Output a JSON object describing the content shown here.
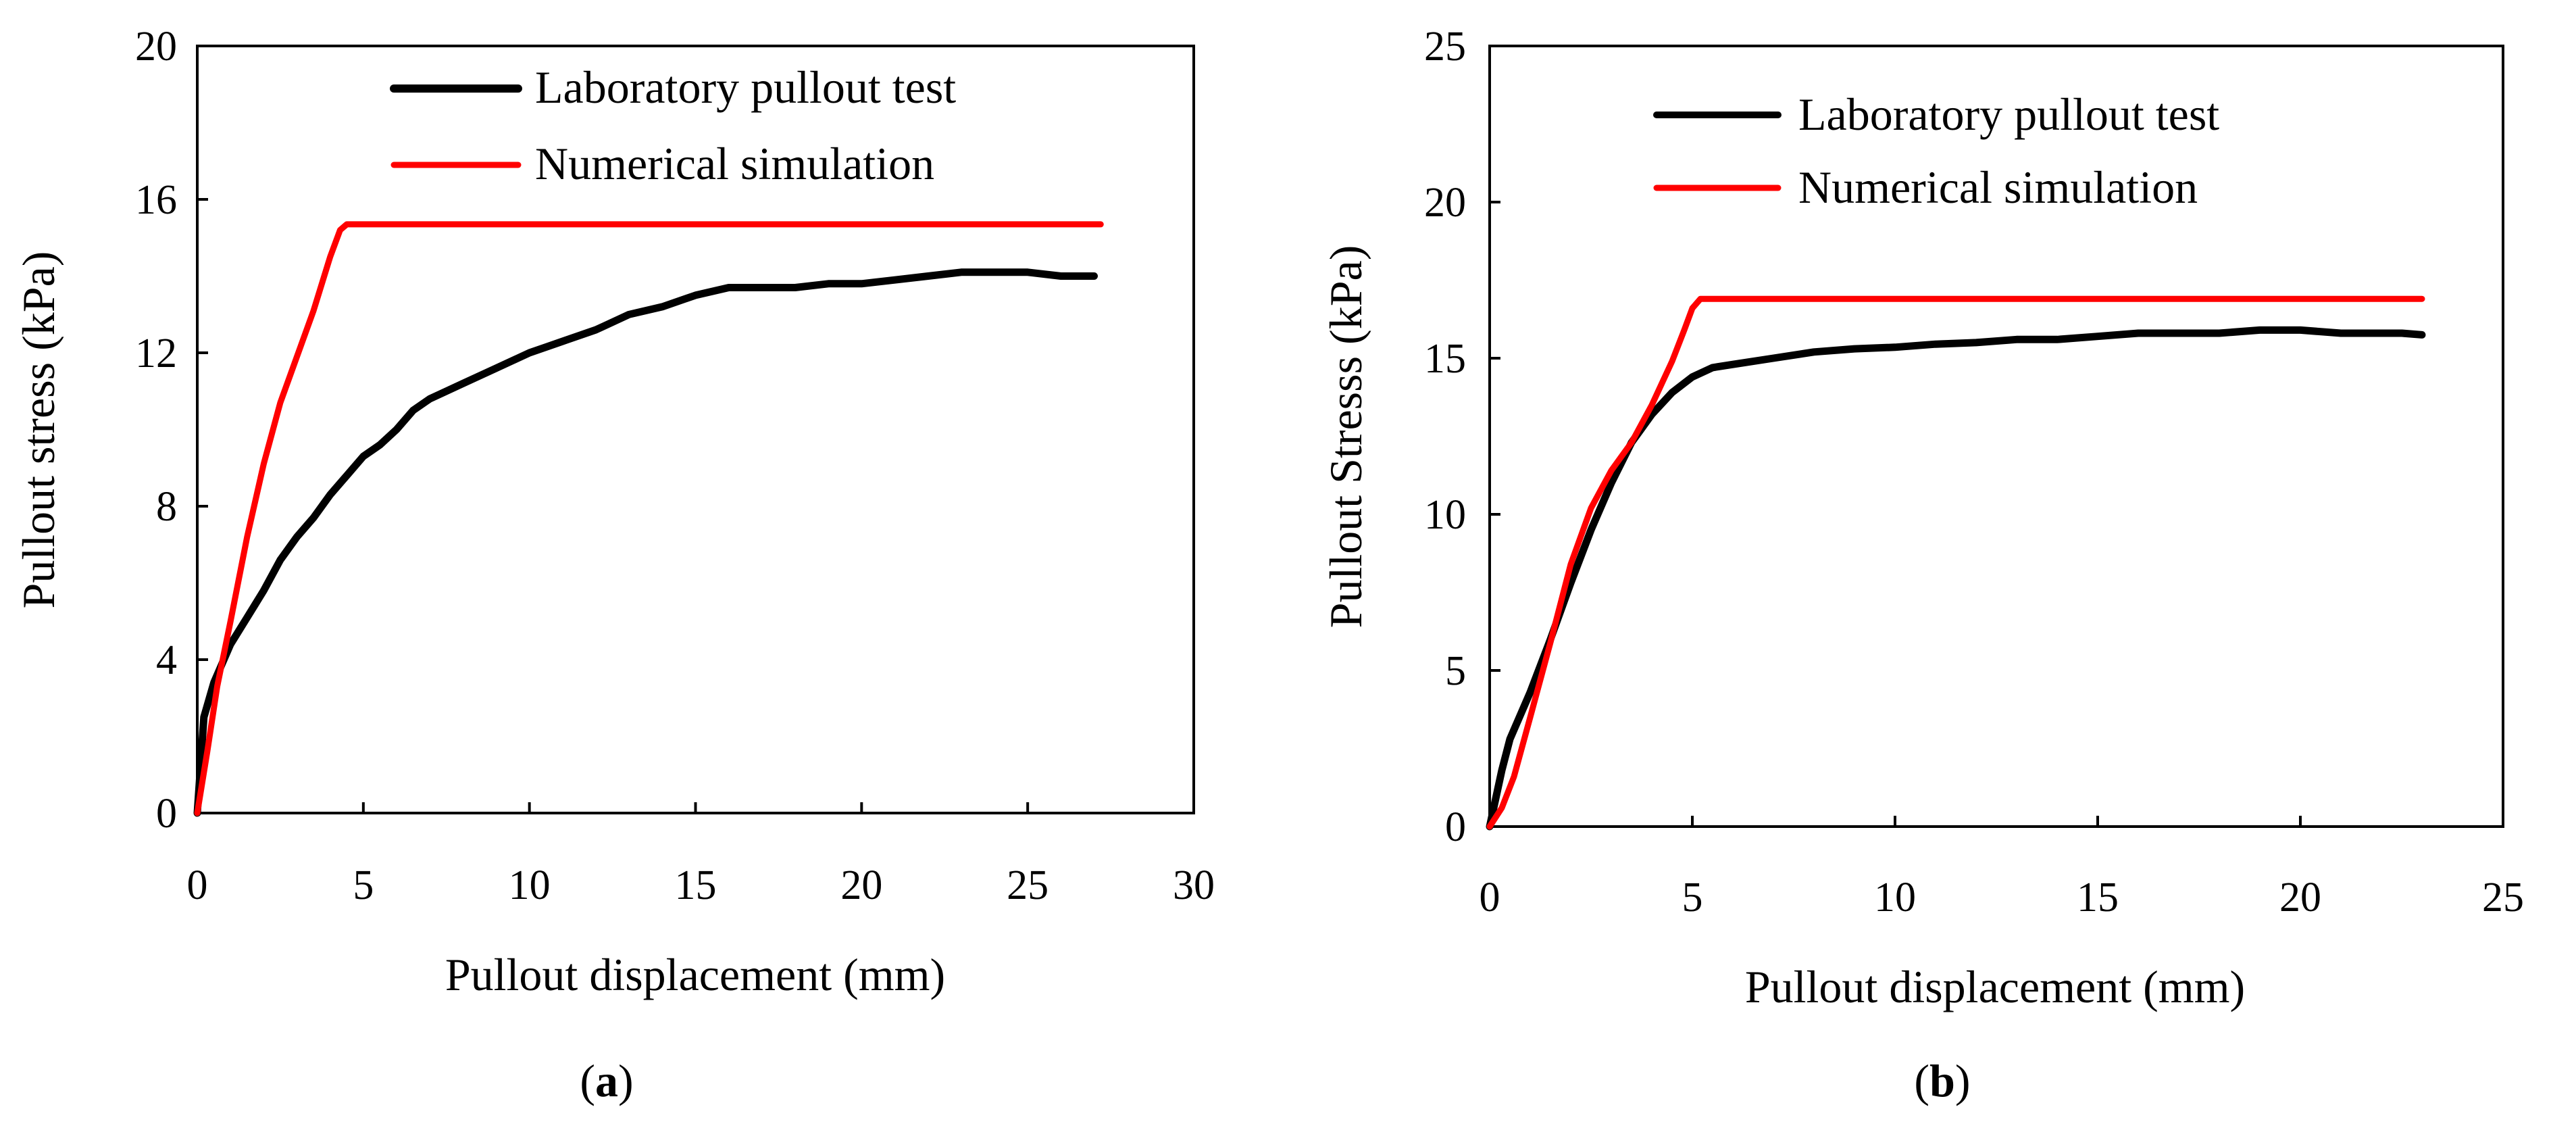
{
  "colors": {
    "lab": "#000000",
    "sim": "#ff0000"
  },
  "chart_data": [
    {
      "type": "line",
      "panel": "a",
      "caption_open": "(",
      "caption_letter": "a",
      "caption_close": ")",
      "xlabel": "Pullout displacement (mm)",
      "ylabel": "Pullout stress (kPa)",
      "xlim": [
        0,
        30
      ],
      "ylim": [
        0,
        20
      ],
      "xticks": [
        0,
        5,
        10,
        15,
        20,
        25,
        30
      ],
      "yticks": [
        0,
        4,
        8,
        12,
        16,
        20
      ],
      "legend_position": "top-center",
      "series": [
        {
          "name": "Laboratory pullout test",
          "color": "#000000",
          "x": [
            0,
            0.2,
            0.5,
            1,
            1.5,
            2,
            2.5,
            3,
            3.5,
            4,
            4.5,
            5,
            5.5,
            6,
            6.5,
            7,
            7.5,
            8,
            9,
            10,
            11,
            12,
            13,
            14,
            15,
            16,
            17,
            18,
            19,
            20,
            21,
            22,
            23,
            24,
            25,
            26,
            27
          ],
          "y": [
            0,
            2.5,
            3.4,
            4.4,
            5.1,
            5.8,
            6.6,
            7.2,
            7.7,
            8.3,
            8.8,
            9.3,
            9.6,
            10.0,
            10.5,
            10.8,
            11.0,
            11.2,
            11.6,
            12.0,
            12.3,
            12.6,
            13.0,
            13.2,
            13.5,
            13.7,
            13.7,
            13.7,
            13.8,
            13.8,
            13.9,
            14.0,
            14.1,
            14.1,
            14.1,
            14.0,
            14.0
          ]
        },
        {
          "name": "Numerical simulation",
          "color": "#ff0000",
          "x": [
            0,
            0.3,
            0.6,
            1,
            1.5,
            2,
            2.5,
            3,
            3.5,
            4,
            4.3,
            4.5,
            10,
            15,
            20,
            25,
            27.2
          ],
          "y": [
            0,
            1.6,
            3.3,
            5.0,
            7.2,
            9.1,
            10.7,
            11.9,
            13.1,
            14.5,
            15.2,
            15.35,
            15.35,
            15.35,
            15.35,
            15.35,
            15.35
          ]
        }
      ]
    },
    {
      "type": "line",
      "panel": "b",
      "caption_open": "(",
      "caption_letter": "b",
      "caption_close": ")",
      "xlabel": "Pullout displacement (mm)",
      "ylabel": "Pullout Stresss (kPa)",
      "xlim": [
        0,
        25
      ],
      "ylim": [
        0,
        25
      ],
      "xticks": [
        0,
        5,
        10,
        15,
        20,
        25
      ],
      "yticks": [
        0,
        5,
        10,
        15,
        20,
        25
      ],
      "legend_position": "top-center",
      "series": [
        {
          "name": "Laboratory pullout test",
          "color": "#000000",
          "x": [
            0,
            0.3,
            0.5,
            1,
            1.5,
            2,
            2.5,
            3,
            3.5,
            4,
            4.5,
            5,
            5.5,
            6,
            7,
            8,
            9,
            10,
            11,
            12,
            13,
            14,
            15,
            16,
            17,
            18,
            19,
            20,
            21,
            22,
            22.5,
            23
          ],
          "y": [
            0,
            1.8,
            2.8,
            4.3,
            6.0,
            7.8,
            9.5,
            11.0,
            12.3,
            13.2,
            13.9,
            14.4,
            14.7,
            14.8,
            15.0,
            15.2,
            15.3,
            15.35,
            15.45,
            15.5,
            15.6,
            15.6,
            15.7,
            15.8,
            15.8,
            15.8,
            15.9,
            15.9,
            15.8,
            15.8,
            15.8,
            15.75
          ]
        },
        {
          "name": "Numerical simulation",
          "color": "#ff0000",
          "x": [
            0,
            0.3,
            0.6,
            1,
            1.5,
            2,
            2.5,
            3,
            3.5,
            4,
            4.5,
            4.8,
            5.0,
            5.2,
            10,
            15,
            20,
            23
          ],
          "y": [
            0,
            0.6,
            1.6,
            3.5,
            5.9,
            8.4,
            10.2,
            11.4,
            12.3,
            13.5,
            14.9,
            15.9,
            16.6,
            16.9,
            16.9,
            16.9,
            16.9,
            16.9
          ]
        }
      ]
    }
  ]
}
